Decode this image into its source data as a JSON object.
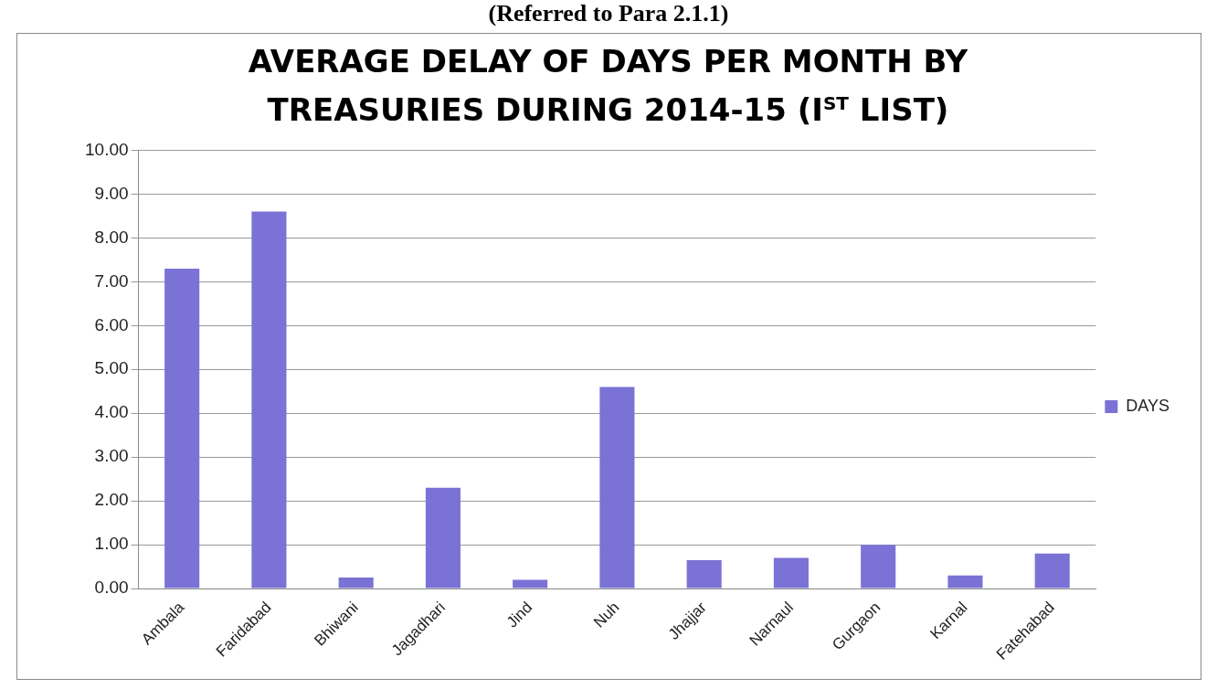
{
  "chart_data": {
    "type": "bar",
    "title": "AVERAGE DELAY OF DAYS PER MONTH BY TREASURIES DURING 2014-15 (I$^{ST}$ LIST)",
    "annotations": [
      "(Referred to Para 2.1.1)"
    ],
    "categories": [
      "Ambala",
      "Faridabad",
      "Bhiwani",
      "Jagadhari",
      "Jind",
      "Nuh",
      "Jhajjar",
      "Narnaul",
      "Gurgaon",
      "Karnal",
      "Fatehabad"
    ],
    "series": [
      {
        "name": "DAYS",
        "color": "#7b72d6",
        "values": [
          7.3,
          8.6,
          0.25,
          2.3,
          0.2,
          4.6,
          0.65,
          0.7,
          1.0,
          0.3,
          0.8
        ]
      }
    ],
    "ylim": [
      0,
      10
    ],
    "yticks": [
      {
        "value": 0,
        "label": "0.00"
      },
      {
        "value": 1,
        "label": "1.00"
      },
      {
        "value": 2,
        "label": "2.00"
      },
      {
        "value": 3,
        "label": "3.00"
      },
      {
        "value": 4,
        "label": "4.00"
      },
      {
        "value": 5,
        "label": "5.00"
      },
      {
        "value": 6,
        "label": "6.00"
      },
      {
        "value": 7,
        "label": "7.00"
      },
      {
        "value": 8,
        "label": "8.00"
      },
      {
        "value": 9,
        "label": "9.00"
      },
      {
        "value": 10,
        "label": "10.00"
      }
    ],
    "grid": "y",
    "legend": "right"
  }
}
